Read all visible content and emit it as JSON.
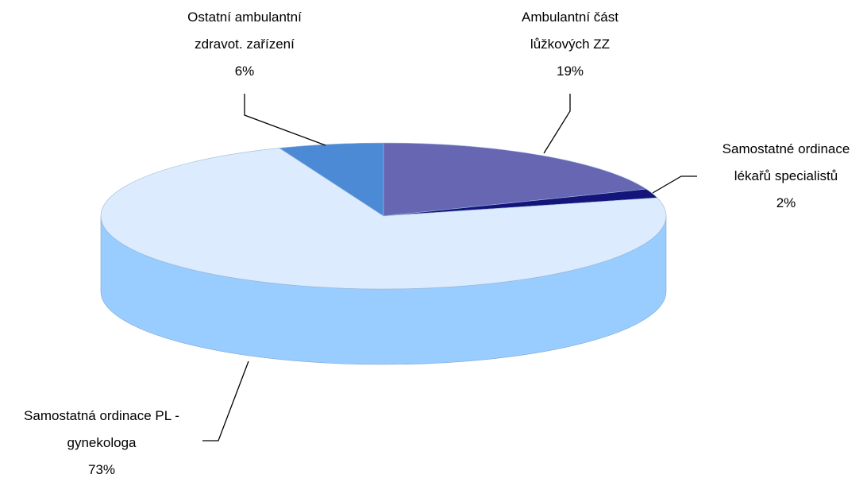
{
  "chart_data": {
    "type": "pie3d",
    "categories": [
      "Ambulantní část lůžkových ZZ",
      "Samostatné ordinace lékařů specialistů",
      "Samostatná ordinace PL - gynekologa",
      "Ostatní ambulantní zdravot. zařízení"
    ],
    "values": [
      19,
      2,
      73,
      6
    ],
    "value_labels": [
      "19%",
      "2%",
      "73%",
      "6%"
    ],
    "colors": [
      "#6666b3",
      "#14147a",
      "#dcebfd",
      "#4d8ad6"
    ],
    "side_colors": [
      "#44448f",
      "#0c0c5a",
      "#99ccff",
      "#3a70b8"
    ]
  }
}
